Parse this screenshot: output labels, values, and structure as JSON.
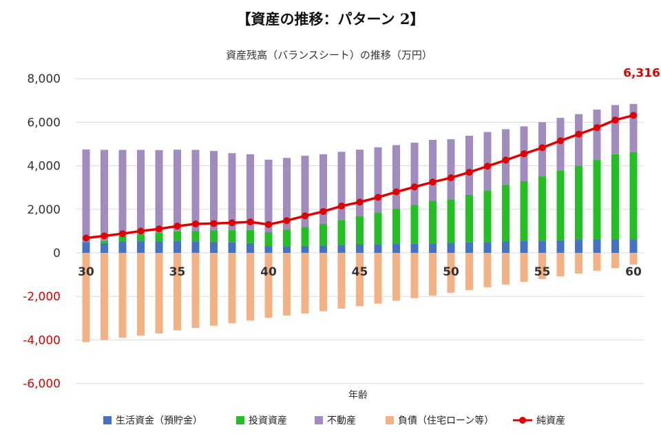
{
  "page": {
    "title": "【資産の推移：パターン 2】"
  },
  "colors": {
    "living": "#4472c4",
    "investment": "#22c022",
    "real_estate": "#a18bbf",
    "debt": "#f4b183",
    "net": "#e00000",
    "grid": "#d9d9d9",
    "negative_tick": "#e00000",
    "positive_tick": "#333333"
  },
  "chart_data": {
    "type": "bar",
    "title": "資産残高（バランスシート）の推移（万円）",
    "xlabel": "年齢",
    "ylabel": "",
    "ylim": [
      -6000,
      8000
    ],
    "yticks": [
      8000,
      6000,
      4000,
      2000,
      0,
      -2000,
      -4000,
      -6000
    ],
    "ytick_labels": [
      "8,000",
      "6,000",
      "4,000",
      "2,000",
      "0",
      "-2,000",
      "-4,000",
      "-6,000"
    ],
    "xtick_labels": [
      "30",
      "35",
      "40",
      "45",
      "50",
      "55",
      "60"
    ],
    "grid": true,
    "legend_position": "bottom",
    "stacked": true,
    "x": [
      30,
      31,
      32,
      33,
      34,
      35,
      36,
      37,
      38,
      39,
      40,
      41,
      42,
      43,
      44,
      45,
      46,
      47,
      48,
      49,
      50,
      51,
      52,
      53,
      54,
      55,
      56,
      57,
      58,
      59,
      60
    ],
    "series": [
      {
        "name": "生活資金（預貯金）",
        "kind": "bar",
        "color_key": "living",
        "values": [
          500,
          450,
          520,
          550,
          520,
          540,
          530,
          510,
          480,
          450,
          300,
          310,
          320,
          330,
          350,
          380,
          400,
          410,
          420,
          440,
          460,
          480,
          500,
          520,
          540,
          560,
          580,
          600,
          620,
          630,
          630
        ]
      },
      {
        "name": "投資資産",
        "kind": "bar",
        "color_key": "investment",
        "values": [
          0,
          100,
          250,
          300,
          400,
          450,
          480,
          520,
          560,
          600,
          650,
          750,
          870,
          1000,
          1150,
          1300,
          1450,
          1620,
          1780,
          1950,
          2000,
          2180,
          2370,
          2600,
          2750,
          2950,
          3200,
          3400,
          3650,
          3900,
          4000
        ]
      },
      {
        "name": "不動産",
        "kind": "bar",
        "color_key": "real_estate",
        "values": [
          4250,
          4180,
          3960,
          3880,
          3800,
          3750,
          3720,
          3650,
          3540,
          3480,
          3330,
          3300,
          3270,
          3200,
          3140,
          3060,
          3000,
          2920,
          2860,
          2800,
          2760,
          2720,
          2680,
          2560,
          2520,
          2490,
          2420,
          2370,
          2310,
          2260,
          2210
        ]
      },
      {
        "name": "負債（住宅ローン等）",
        "kind": "bar",
        "color_key": "debt",
        "values": [
          -4100,
          -4000,
          -3900,
          -3800,
          -3700,
          -3560,
          -3450,
          -3350,
          -3230,
          -3110,
          -2980,
          -2880,
          -2780,
          -2680,
          -2560,
          -2450,
          -2330,
          -2200,
          -2080,
          -1960,
          -1830,
          -1710,
          -1580,
          -1460,
          -1330,
          -1200,
          -1080,
          -950,
          -820,
          -700,
          -540
        ]
      },
      {
        "name": "純資産",
        "kind": "line",
        "color_key": "net",
        "values": [
          680,
          780,
          880,
          1000,
          1100,
          1230,
          1330,
          1350,
          1380,
          1420,
          1300,
          1480,
          1700,
          1900,
          2150,
          2330,
          2550,
          2800,
          3030,
          3250,
          3450,
          3700,
          3980,
          4260,
          4550,
          4830,
          5150,
          5450,
          5750,
          6100,
          6316
        ]
      }
    ],
    "annotations": [
      {
        "series": "純資産",
        "x": 60,
        "text": "6,316"
      }
    ]
  }
}
